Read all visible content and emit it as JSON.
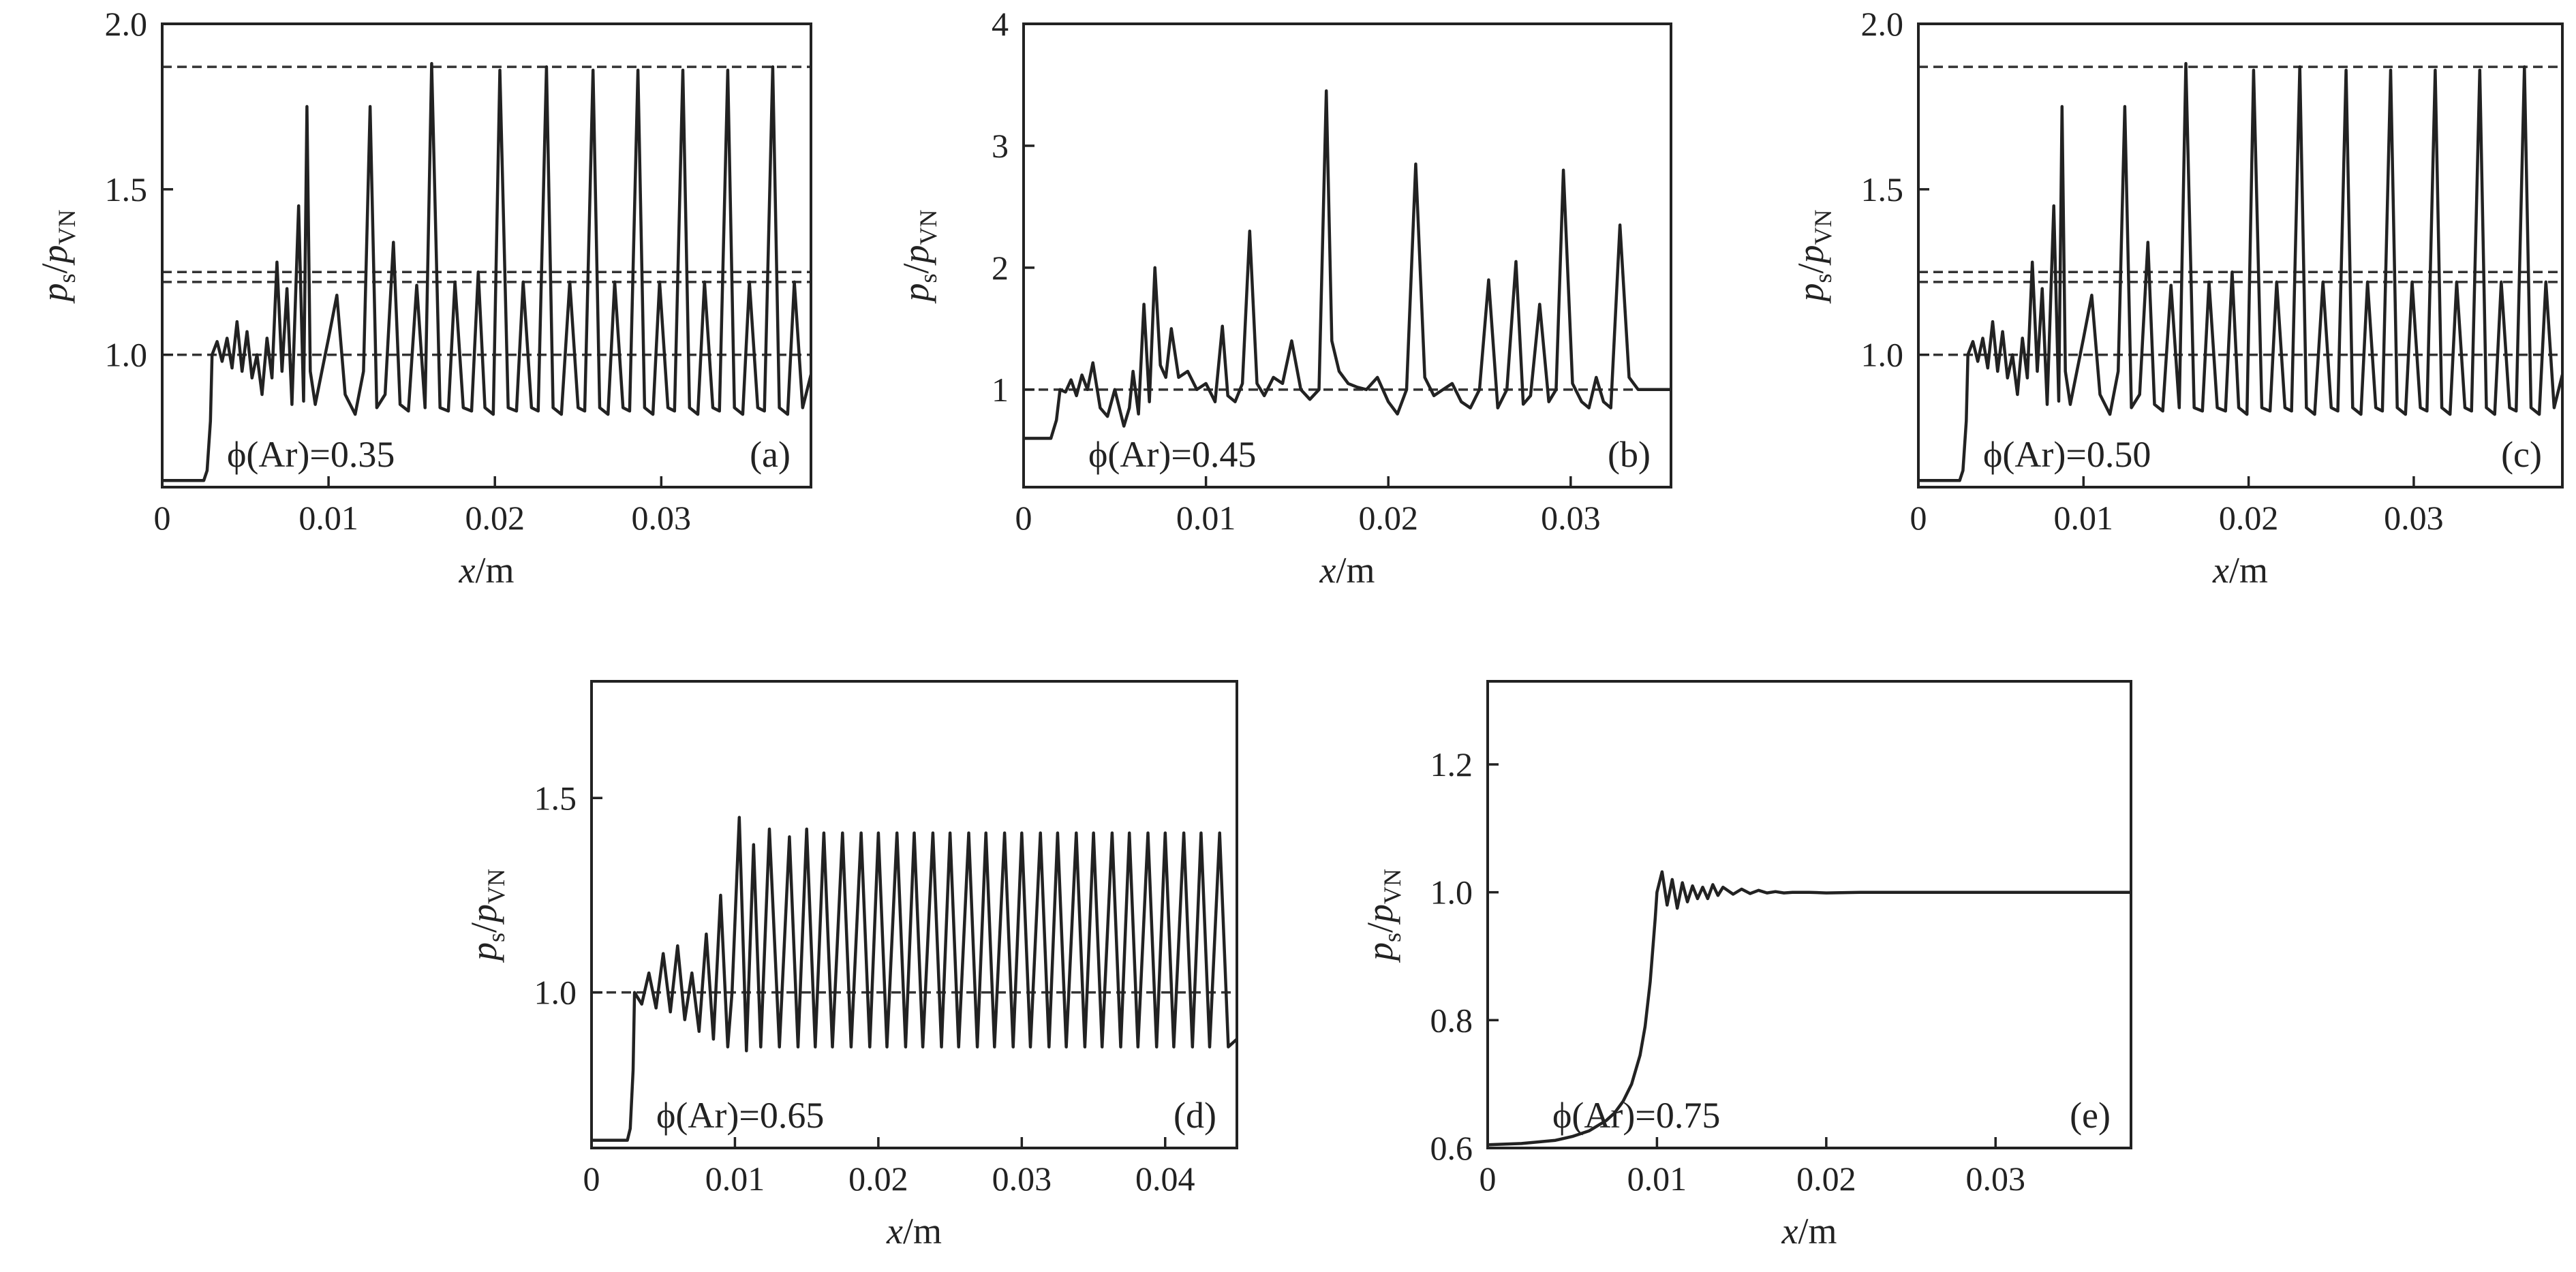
{
  "chart_data": [
    {
      "type": "line",
      "panel": "(a)",
      "annotation": "ϕ(Ar)=0.35",
      "xlabel": "x/m",
      "ylabel": "ps/pVN",
      "xlim": [
        0,
        0.039
      ],
      "ylim": [
        0.6,
        2.0
      ],
      "xticks": [
        0,
        0.01,
        0.02,
        0.03
      ],
      "xtick_labels": [
        "0",
        "0.01",
        "0.02",
        "0.03"
      ],
      "yticks": [
        1.0,
        1.5,
        2.0
      ],
      "ytick_labels": [
        "1.0",
        "1.5",
        "2.0"
      ],
      "reference_lines": [
        1.0,
        1.22,
        1.25,
        1.87
      ],
      "series": [
        {
          "name": "ps/pVN",
          "x": [
            0,
            0.0025,
            0.0027,
            0.0029,
            0.003,
            0.0033,
            0.0036,
            0.0039,
            0.0042,
            0.0045,
            0.0048,
            0.0051,
            0.0054,
            0.0057,
            0.006,
            0.0063,
            0.0066,
            0.0069,
            0.0072,
            0.0075,
            0.0078,
            0.0082,
            0.0085,
            0.0087,
            0.0089,
            0.0092,
            0.0096,
            0.01,
            0.0105,
            0.011,
            0.0116,
            0.0121,
            0.0125,
            0.0129,
            0.0134,
            0.0139,
            0.0143,
            0.0148,
            0.0153,
            0.0158,
            0.0162,
            0.0167,
            0.0172,
            0.0176,
            0.0181,
            0.0186,
            0.019,
            0.0194,
            0.0199,
            0.0203,
            0.0208,
            0.0213,
            0.0217,
            0.0222,
            0.0226,
            0.0231,
            0.0235,
            0.024,
            0.0245,
            0.025,
            0.0254,
            0.0259,
            0.0263,
            0.0268,
            0.0272,
            0.0277,
            0.0281,
            0.0286,
            0.029,
            0.0295,
            0.0299,
            0.0304,
            0.0308,
            0.0313,
            0.0317,
            0.0322,
            0.0326,
            0.0331,
            0.0335,
            0.034,
            0.0344,
            0.0349,
            0.0353,
            0.0358,
            0.0362,
            0.0367,
            0.0371,
            0.0376,
            0.038,
            0.0385,
            0.039
          ],
          "y": [
            0.62,
            0.62,
            0.65,
            0.8,
            1.0,
            1.04,
            0.98,
            1.05,
            0.96,
            1.1,
            0.95,
            1.07,
            0.93,
            1.0,
            0.88,
            1.05,
            0.93,
            1.28,
            0.95,
            1.2,
            0.85,
            1.45,
            0.86,
            1.75,
            0.95,
            0.85,
            0.95,
            1.05,
            1.18,
            0.88,
            0.82,
            0.95,
            1.75,
            0.84,
            0.88,
            1.34,
            0.85,
            0.83,
            1.21,
            0.84,
            1.88,
            0.84,
            0.83,
            1.22,
            0.84,
            0.83,
            1.25,
            0.84,
            0.82,
            1.86,
            0.84,
            0.83,
            1.22,
            0.84,
            0.83,
            1.87,
            0.84,
            0.82,
            1.22,
            0.84,
            0.83,
            1.86,
            0.84,
            0.82,
            1.22,
            0.84,
            0.83,
            1.86,
            0.84,
            0.82,
            1.22,
            0.84,
            0.83,
            1.86,
            0.84,
            0.82,
            1.22,
            0.84,
            0.83,
            1.86,
            0.84,
            0.82,
            1.22,
            0.84,
            0.83,
            1.87,
            0.84,
            0.82,
            1.22,
            0.84,
            0.94
          ]
        }
      ]
    },
    {
      "type": "line",
      "panel": "(b)",
      "annotation": "ϕ(Ar)=0.45",
      "xlabel": "x/m",
      "ylabel": "ps/pVN",
      "xlim": [
        0,
        0.0355
      ],
      "ylim": [
        0.2,
        4.0
      ],
      "xticks": [
        0,
        0.01,
        0.02,
        0.03
      ],
      "xtick_labels": [
        "0",
        "0.01",
        "0.02",
        "0.03"
      ],
      "yticks": [
        1,
        2,
        3,
        4
      ],
      "ytick_labels": [
        "1",
        "2",
        "3",
        "4"
      ],
      "reference_lines": [
        1.0
      ],
      "series": [
        {
          "name": "ps/pVN",
          "x": [
            0,
            0.0015,
            0.0018,
            0.002,
            0.0023,
            0.0026,
            0.0029,
            0.0032,
            0.0035,
            0.0038,
            0.0042,
            0.0046,
            0.005,
            0.0055,
            0.0058,
            0.006,
            0.0063,
            0.0066,
            0.0069,
            0.0072,
            0.0075,
            0.0078,
            0.0081,
            0.0085,
            0.009,
            0.0095,
            0.01,
            0.0105,
            0.0109,
            0.0112,
            0.0116,
            0.012,
            0.0124,
            0.0128,
            0.0132,
            0.0137,
            0.0142,
            0.0147,
            0.0152,
            0.0157,
            0.0162,
            0.0166,
            0.0169,
            0.0173,
            0.0178,
            0.0183,
            0.0188,
            0.0194,
            0.02,
            0.0205,
            0.021,
            0.0215,
            0.022,
            0.0225,
            0.023,
            0.0235,
            0.024,
            0.0245,
            0.025,
            0.0255,
            0.026,
            0.0265,
            0.027,
            0.0274,
            0.0278,
            0.0283,
            0.0288,
            0.0292,
            0.0296,
            0.0301,
            0.0306,
            0.031,
            0.0314,
            0.0318,
            0.0322,
            0.0327,
            0.0332,
            0.0337,
            0.0342,
            0.0347,
            0.035,
            0.0355
          ],
          "y": [
            0.6,
            0.6,
            0.75,
            1.0,
            0.98,
            1.08,
            0.95,
            1.12,
            1.0,
            1.22,
            0.85,
            0.78,
            1.0,
            0.7,
            0.85,
            1.15,
            0.8,
            1.7,
            0.9,
            2.0,
            1.2,
            1.1,
            1.5,
            1.1,
            1.15,
            1.0,
            1.05,
            0.9,
            1.52,
            0.95,
            0.9,
            1.05,
            2.3,
            1.05,
            0.95,
            1.1,
            1.05,
            1.4,
            1.0,
            0.92,
            1.0,
            3.45,
            1.4,
            1.15,
            1.05,
            1.02,
            1.0,
            1.1,
            0.9,
            0.8,
            1.0,
            2.85,
            1.1,
            0.95,
            1.0,
            1.05,
            0.9,
            0.85,
            1.0,
            1.9,
            0.85,
            1.0,
            2.05,
            0.88,
            0.95,
            1.7,
            0.9,
            1.0,
            2.8,
            1.05,
            0.9,
            0.85,
            1.1,
            0.9,
            0.85,
            2.35,
            1.1,
            1.0,
            1.0,
            1.0,
            1.0,
            1.0
          ]
        }
      ]
    },
    {
      "type": "line",
      "panel": "(c)",
      "annotation": "ϕ(Ar)=0.50",
      "xlabel": "x/m",
      "ylabel": "ps/pVN",
      "xlim": [
        0,
        0.039
      ],
      "ylim": [
        0.6,
        2.0
      ],
      "xticks": [
        0,
        0.01,
        0.02,
        0.03
      ],
      "xtick_labels": [
        "0",
        "0.01",
        "0.02",
        "0.03"
      ],
      "yticks": [
        1.0,
        1.5,
        2.0
      ],
      "ytick_labels": [
        "1.0",
        "1.5",
        "2.0"
      ],
      "reference_lines": [
        1.0,
        1.22,
        1.25,
        1.87
      ],
      "series": [
        {
          "name": "ps/pVN",
          "x": [
            0,
            0.0025,
            0.0027,
            0.0029,
            0.003,
            0.0033,
            0.0036,
            0.0039,
            0.0042,
            0.0045,
            0.0048,
            0.0051,
            0.0054,
            0.0057,
            0.006,
            0.0063,
            0.0066,
            0.0069,
            0.0072,
            0.0075,
            0.0078,
            0.0082,
            0.0085,
            0.0087,
            0.0089,
            0.0092,
            0.0096,
            0.01,
            0.0105,
            0.011,
            0.0116,
            0.0121,
            0.0125,
            0.0129,
            0.0134,
            0.0139,
            0.0143,
            0.0148,
            0.0153,
            0.0158,
            0.0162,
            0.0167,
            0.0172,
            0.0176,
            0.0181,
            0.0186,
            0.019,
            0.0194,
            0.0199,
            0.0203,
            0.0208,
            0.0213,
            0.0217,
            0.0222,
            0.0226,
            0.0231,
            0.0235,
            0.024,
            0.0245,
            0.025,
            0.0254,
            0.0259,
            0.0263,
            0.0268,
            0.0272,
            0.0277,
            0.0281,
            0.0286,
            0.029,
            0.0295,
            0.0299,
            0.0304,
            0.0308,
            0.0313,
            0.0317,
            0.0322,
            0.0326,
            0.0331,
            0.0335,
            0.034,
            0.0344,
            0.0349,
            0.0353,
            0.0358,
            0.0362,
            0.0367,
            0.0371,
            0.0376,
            0.038,
            0.0385,
            0.039
          ],
          "y": [
            0.62,
            0.62,
            0.65,
            0.8,
            1.0,
            1.04,
            0.98,
            1.05,
            0.96,
            1.1,
            0.95,
            1.07,
            0.93,
            1.0,
            0.88,
            1.05,
            0.93,
            1.28,
            0.95,
            1.2,
            0.85,
            1.45,
            0.86,
            1.75,
            0.95,
            0.85,
            0.95,
            1.05,
            1.18,
            0.88,
            0.82,
            0.95,
            1.75,
            0.84,
            0.88,
            1.34,
            0.85,
            0.83,
            1.21,
            0.84,
            1.88,
            0.84,
            0.83,
            1.22,
            0.84,
            0.83,
            1.25,
            0.84,
            0.82,
            1.86,
            0.84,
            0.83,
            1.22,
            0.84,
            0.83,
            1.87,
            0.84,
            0.82,
            1.22,
            0.84,
            0.83,
            1.86,
            0.84,
            0.82,
            1.22,
            0.84,
            0.83,
            1.86,
            0.84,
            0.82,
            1.22,
            0.84,
            0.83,
            1.86,
            0.84,
            0.82,
            1.22,
            0.84,
            0.83,
            1.86,
            0.84,
            0.82,
            1.22,
            0.84,
            0.83,
            1.87,
            0.84,
            0.82,
            1.22,
            0.84,
            0.94
          ]
        }
      ]
    },
    {
      "type": "line",
      "panel": "(d)",
      "annotation": "ϕ(Ar)=0.65",
      "xlabel": "x/m",
      "ylabel": "ps/pVN",
      "xlim": [
        0,
        0.045
      ],
      "ylim": [
        0.6,
        1.8
      ],
      "xticks": [
        0,
        0.01,
        0.02,
        0.03,
        0.04
      ],
      "xtick_labels": [
        "0",
        "0.01",
        "0.02",
        "0.03",
        "0.04"
      ],
      "yticks": [
        1.0,
        1.5
      ],
      "ytick_labels": [
        "1.0",
        "1.5"
      ],
      "reference_lines": [
        1.0
      ],
      "series": [
        {
          "name": "ps/pVN",
          "x": [
            0,
            0.0025,
            0.0027,
            0.0029,
            0.003,
            0.0035,
            0.004,
            0.0045,
            0.005,
            0.0055,
            0.006,
            0.0065,
            0.007,
            0.0075,
            0.008,
            0.0085,
            0.009,
            0.0095,
            0.0098,
            0.0103,
            0.0108,
            0.0113,
            0.0118,
            0.0124,
            0.0131,
            0.0138,
            0.0144,
            0.015,
            0.0156,
            0.0162,
            0.0168,
            0.0175,
            0.0181,
            0.0188,
            0.0194,
            0.02,
            0.0206,
            0.0213,
            0.0219,
            0.0225,
            0.0231,
            0.0238,
            0.0244,
            0.025,
            0.0256,
            0.0263,
            0.0269,
            0.0275,
            0.0281,
            0.0288,
            0.0294,
            0.03,
            0.0306,
            0.0313,
            0.0319,
            0.0325,
            0.0331,
            0.0338,
            0.0344,
            0.035,
            0.0356,
            0.0363,
            0.0369,
            0.0375,
            0.0381,
            0.0388,
            0.0394,
            0.04,
            0.0406,
            0.0413,
            0.0419,
            0.0425,
            0.0431,
            0.0438,
            0.0444,
            0.045
          ],
          "y": [
            0.62,
            0.62,
            0.65,
            0.8,
            1.0,
            0.97,
            1.05,
            0.96,
            1.1,
            0.95,
            1.12,
            0.93,
            1.05,
            0.9,
            1.15,
            0.88,
            1.25,
            0.86,
            1.0,
            1.45,
            0.85,
            1.38,
            0.86,
            1.42,
            0.86,
            1.4,
            0.86,
            1.42,
            0.86,
            1.41,
            0.86,
            1.41,
            0.86,
            1.41,
            0.86,
            1.41,
            0.86,
            1.41,
            0.86,
            1.41,
            0.86,
            1.41,
            0.86,
            1.41,
            0.86,
            1.41,
            0.86,
            1.41,
            0.86,
            1.41,
            0.86,
            1.41,
            0.86,
            1.41,
            0.86,
            1.41,
            0.86,
            1.41,
            0.86,
            1.41,
            0.86,
            1.41,
            0.86,
            1.41,
            0.86,
            1.41,
            0.86,
            1.41,
            0.86,
            1.41,
            0.86,
            1.41,
            0.86,
            1.41,
            0.86,
            0.88
          ]
        }
      ]
    },
    {
      "type": "line",
      "panel": "(e)",
      "annotation": "ϕ(Ar)=0.75",
      "xlabel": "x/m",
      "ylabel": "ps/pVN",
      "xlim": [
        0,
        0.038
      ],
      "ylim": [
        0.6,
        1.33
      ],
      "xticks": [
        0,
        0.01,
        0.02,
        0.03
      ],
      "xtick_labels": [
        "0",
        "0.01",
        "0.02",
        "0.03"
      ],
      "yticks": [
        0.6,
        0.8,
        1.0,
        1.2
      ],
      "ytick_labels": [
        "0.6",
        "0.8",
        "1.0",
        "1.2"
      ],
      "reference_lines": [],
      "series": [
        {
          "name": "ps/pVN",
          "x": [
            0,
            0.002,
            0.004,
            0.005,
            0.006,
            0.007,
            0.0075,
            0.008,
            0.0085,
            0.009,
            0.0093,
            0.0096,
            0.0099,
            0.01,
            0.0103,
            0.0106,
            0.0109,
            0.0112,
            0.0115,
            0.0118,
            0.0121,
            0.0124,
            0.0127,
            0.013,
            0.0133,
            0.0136,
            0.0139,
            0.0145,
            0.015,
            0.0155,
            0.016,
            0.0165,
            0.017,
            0.0175,
            0.018,
            0.019,
            0.02,
            0.022,
            0.025,
            0.03,
            0.035,
            0.038
          ],
          "y": [
            0.605,
            0.607,
            0.612,
            0.618,
            0.627,
            0.643,
            0.655,
            0.673,
            0.7,
            0.745,
            0.79,
            0.86,
            0.96,
            1.0,
            1.032,
            0.98,
            1.02,
            0.975,
            1.015,
            0.985,
            1.01,
            0.99,
            1.008,
            0.99,
            1.012,
            0.995,
            1.008,
            0.997,
            1.005,
            0.998,
            1.003,
            0.999,
            1.001,
            0.999,
            1.0,
            1.0,
            0.999,
            1.0,
            1.0,
            1.0,
            1.0,
            1.0
          ]
        }
      ]
    }
  ]
}
